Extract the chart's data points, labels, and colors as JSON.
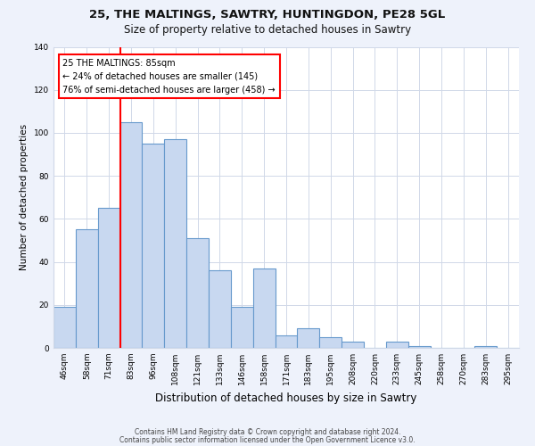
{
  "title1": "25, THE MALTINGS, SAWTRY, HUNTINGDON, PE28 5GL",
  "title2": "Size of property relative to detached houses in Sawtry",
  "xlabel": "Distribution of detached houses by size in Sawtry",
  "ylabel": "Number of detached properties",
  "footnote1": "Contains HM Land Registry data © Crown copyright and database right 2024.",
  "footnote2": "Contains public sector information licensed under the Open Government Licence v3.0.",
  "categories": [
    "46sqm",
    "58sqm",
    "71sqm",
    "83sqm",
    "96sqm",
    "108sqm",
    "121sqm",
    "133sqm",
    "146sqm",
    "158sqm",
    "171sqm",
    "183sqm",
    "195sqm",
    "208sqm",
    "220sqm",
    "233sqm",
    "245sqm",
    "258sqm",
    "270sqm",
    "283sqm",
    "295sqm"
  ],
  "values": [
    19,
    55,
    65,
    105,
    95,
    97,
    51,
    36,
    19,
    37,
    6,
    9,
    5,
    3,
    0,
    3,
    1,
    0,
    0,
    1,
    0
  ],
  "bar_color": "#c8d8f0",
  "bar_edge_color": "#6699cc",
  "annotation_line1": "25 THE MALTINGS: 85sqm",
  "annotation_line2": "← 24% of detached houses are smaller (145)",
  "annotation_line3": "76% of semi-detached houses are larger (458) →",
  "annotation_box_color": "white",
  "annotation_box_edge_color": "red",
  "property_bin_index": 3,
  "ylim": [
    0,
    140
  ],
  "yticks": [
    0,
    20,
    40,
    60,
    80,
    100,
    120,
    140
  ],
  "background_color": "#eef2fb",
  "plot_background": "#ffffff",
  "grid_color": "#d0d8e8",
  "title1_fontsize": 9.5,
  "title2_fontsize": 8.5,
  "xlabel_fontsize": 8.5,
  "ylabel_fontsize": 7.5,
  "tick_fontsize": 6.5,
  "footnote_fontsize": 5.5
}
